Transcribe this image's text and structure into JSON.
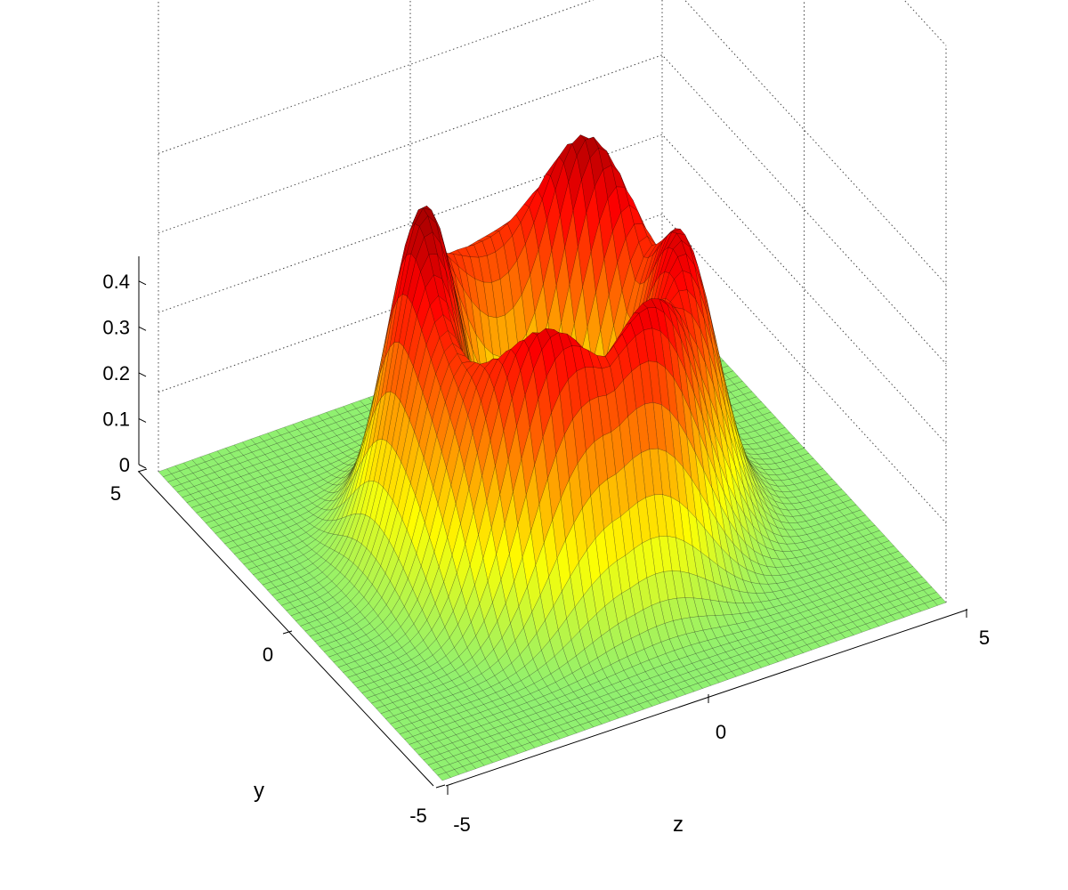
{
  "chart_data": {
    "type": "surface3d",
    "title": "",
    "xlabel": "z",
    "ylabel": "y",
    "zlabel": "",
    "xlim": [
      -5,
      5
    ],
    "ylim": [
      -5,
      5
    ],
    "zlim": [
      0,
      0.45
    ],
    "x_ticks": [
      -5,
      0,
      5
    ],
    "y_ticks": [
      -5,
      0,
      5
    ],
    "z_ticks": [
      0,
      0.1,
      0.2,
      0.3,
      0.4
    ],
    "x_tick_labels": [
      "-5",
      "0",
      "5"
    ],
    "y_tick_labels": [
      "-5",
      "0",
      "5"
    ],
    "z_tick_labels": [
      "0",
      "0.1",
      "0.2",
      "0.3",
      "0.4"
    ],
    "grid": true,
    "colormap": "green-yellow-red",
    "colormap_stops": [
      "#90f070",
      "#ffff00",
      "#ff8000",
      "#ff0000",
      "#800000"
    ],
    "surface": {
      "shape": "ring",
      "ring_radius": 2.2,
      "ring_width": 0.95,
      "peaks": [
        {
          "x": -2.0,
          "y": 1.0,
          "z": 0.42
        },
        {
          "x": 1.6,
          "y": 1.6,
          "z": 0.41
        },
        {
          "x": 2.2,
          "y": -0.9,
          "z": 0.37
        },
        {
          "x": -1.2,
          "y": -2.0,
          "z": 0.36
        },
        {
          "x": 0.8,
          "y": -2.2,
          "z": 0.36
        }
      ],
      "ring_floor_z": 0.29,
      "grid_n": 60
    }
  }
}
